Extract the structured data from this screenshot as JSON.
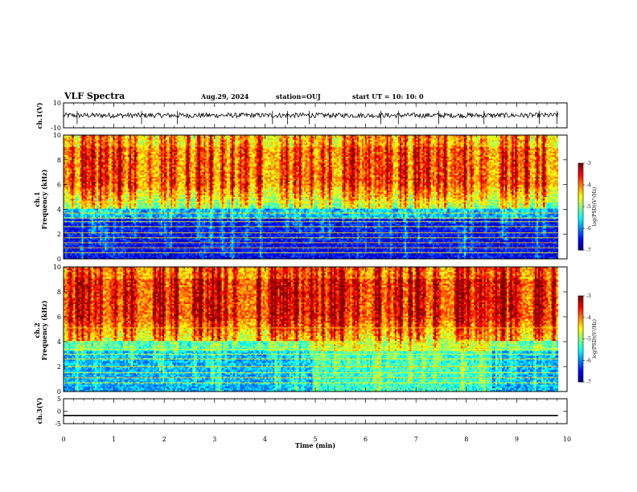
{
  "header": {
    "title": "VLF Spectra",
    "date": "Aug.29, 2024",
    "station": "station=OUJ",
    "start": "start UT =  10: 10: 0"
  },
  "chart_data": [
    {
      "type": "line",
      "name": "ch1-waveform",
      "ylabel": "ch.1(V)",
      "ylim": [
        -10,
        10
      ],
      "yticks": [
        "10",
        "-10"
      ],
      "xlim": [
        0,
        10
      ],
      "baseline": 0,
      "noise_amplitude": 2.0,
      "spikes_min": [
        0.27,
        1.55,
        2.26,
        4.15,
        4.45,
        4.88,
        6.3,
        6.65,
        7.45,
        8.35,
        9.45,
        9.8
      ]
    },
    {
      "type": "heatmap",
      "name": "ch1-spectrogram",
      "ylabel": "ch.1\nFrequency (kHz)",
      "xlim": [
        0,
        10
      ],
      "ylim": [
        0,
        10
      ],
      "yticks": [
        "0",
        "2",
        "4",
        "6",
        "8",
        "10"
      ],
      "colorbar": {
        "label": "log(PSD)(V²/Hz)",
        "range": [
          -7,
          -3
        ],
        "ticks": [
          "-3",
          "-4",
          "-5",
          "-6",
          "-7"
        ]
      },
      "background_log_psd": {
        "above_6kHz": -4.3,
        "4_to_6kHz": -5.3,
        "below_4kHz": -6.5
      }
    },
    {
      "type": "heatmap",
      "name": "ch2-spectrogram",
      "ylabel": "ch.2\nFrequency (kHz)",
      "xlim": [
        0,
        10
      ],
      "ylim": [
        0,
        10
      ],
      "yticks": [
        "0",
        "2",
        "4",
        "6",
        "8",
        "10"
      ],
      "colorbar": {
        "label": "log(PSD)(V²/Hz)",
        "range": [
          -7,
          -3
        ],
        "ticks": [
          "-3",
          "-4",
          "-5",
          "-6",
          "-7"
        ]
      },
      "background_log_psd": {
        "above_6kHz": -4.0,
        "4_to_6kHz": -4.8,
        "below_4kHz": -5.8
      }
    },
    {
      "type": "line",
      "name": "ch3-waveform",
      "ylabel": "ch.3(V)",
      "ylim": [
        -5,
        5
      ],
      "yticks": [
        "5",
        "0",
        "-5"
      ],
      "xlim": [
        0,
        10
      ],
      "level": -1.7
    }
  ],
  "xaxis": {
    "label": "Time (min)",
    "ticks": [
      "0",
      "1",
      "2",
      "3",
      "4",
      "5",
      "6",
      "7",
      "8",
      "9",
      "10"
    ]
  },
  "colors": {
    "frame": "#000000",
    "trace": "#000000"
  }
}
